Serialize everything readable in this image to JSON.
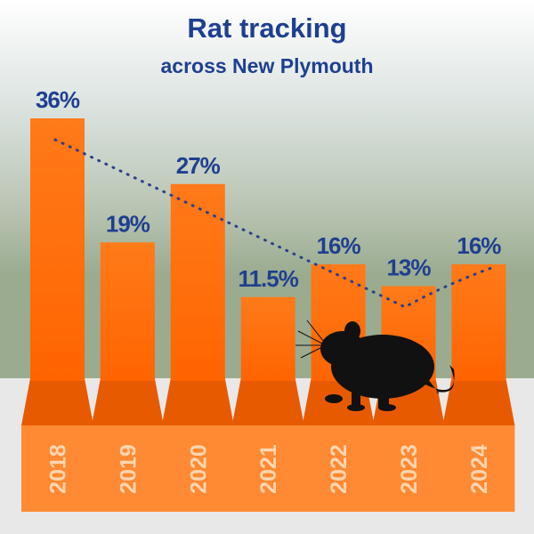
{
  "chart_data": {
    "type": "bar",
    "title": "Rat tracking",
    "subtitle": "across New Plymouth",
    "categories": [
      "2018",
      "2019",
      "2020",
      "2021",
      "2022",
      "2023",
      "2024"
    ],
    "values": [
      36,
      19,
      27,
      11.5,
      16,
      13,
      16
    ],
    "value_labels": [
      "36%",
      "19%",
      "27%",
      "11.5%",
      "16%",
      "13%",
      "16%"
    ],
    "color": "#ff6d0a"
  }
}
